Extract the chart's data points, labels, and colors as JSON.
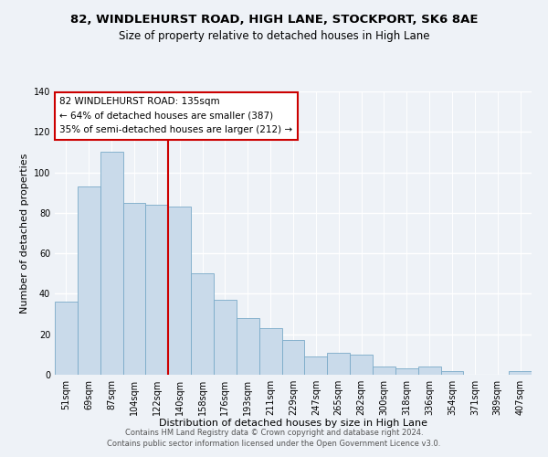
{
  "title": "82, WINDLEHURST ROAD, HIGH LANE, STOCKPORT, SK6 8AE",
  "subtitle": "Size of property relative to detached houses in High Lane",
  "xlabel": "Distribution of detached houses by size in High Lane",
  "ylabel": "Number of detached properties",
  "categories": [
    "51sqm",
    "69sqm",
    "87sqm",
    "104sqm",
    "122sqm",
    "140sqm",
    "158sqm",
    "176sqm",
    "193sqm",
    "211sqm",
    "229sqm",
    "247sqm",
    "265sqm",
    "282sqm",
    "300sqm",
    "318sqm",
    "336sqm",
    "354sqm",
    "371sqm",
    "389sqm",
    "407sqm"
  ],
  "values": [
    36,
    93,
    110,
    85,
    84,
    83,
    50,
    37,
    28,
    23,
    17,
    9,
    11,
    10,
    4,
    3,
    4,
    2,
    0,
    0,
    2
  ],
  "bar_color": "#c9daea",
  "bar_edge_color": "#7aaac8",
  "vline_x_index": 5,
  "vline_color": "#cc0000",
  "ylim": [
    0,
    140
  ],
  "yticks": [
    0,
    20,
    40,
    60,
    80,
    100,
    120,
    140
  ],
  "annotation_text": "82 WINDLEHURST ROAD: 135sqm\n← 64% of detached houses are smaller (387)\n35% of semi-detached houses are larger (212) →",
  "annotation_box_color": "#ffffff",
  "annotation_box_edge": "#cc0000",
  "footer1": "Contains HM Land Registry data © Crown copyright and database right 2024.",
  "footer2": "Contains public sector information licensed under the Open Government Licence v3.0.",
  "background_color": "#eef2f7",
  "grid_color": "#ffffff",
  "title_fontsize": 9.5,
  "subtitle_fontsize": 8.5,
  "axis_label_fontsize": 8,
  "tick_fontsize": 7,
  "annotation_fontsize": 7.5,
  "footer_fontsize": 6
}
